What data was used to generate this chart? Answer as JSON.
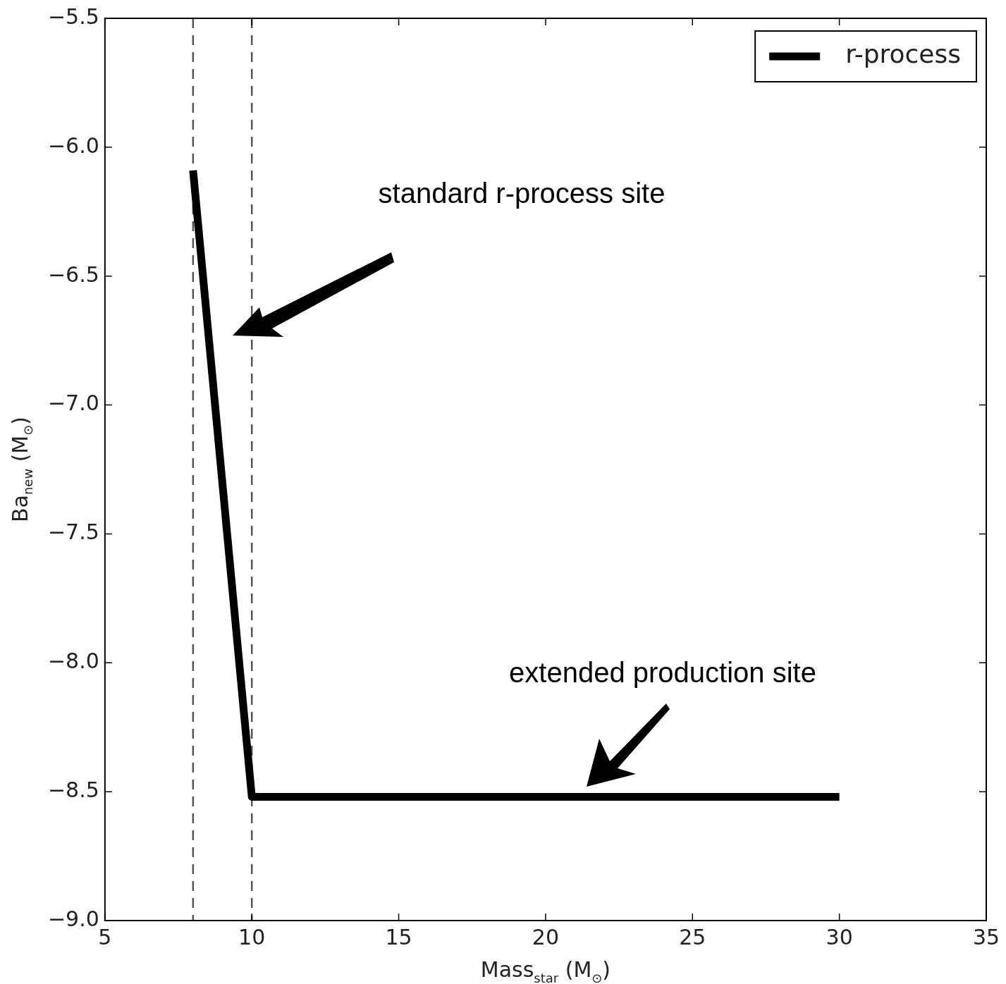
{
  "chart_data": {
    "type": "line",
    "xlabel": "Mass$_{star}$ (M$_{⊙}$)",
    "ylabel": "Ba$_{new}$ (M$_{⊙}$)",
    "xlim": [
      5,
      35
    ],
    "xticks": [
      5,
      10,
      15,
      20,
      25,
      30,
      35
    ],
    "ylim": [
      -9.0,
      -5.5
    ],
    "yticks": [
      {
        "value": -9.0,
        "label": "−9.0"
      },
      {
        "value": -8.5,
        "label": "−8.5"
      },
      {
        "value": -8.0,
        "label": "−8.0"
      },
      {
        "value": -7.5,
        "label": "−7.5"
      },
      {
        "value": -7.0,
        "label": "−7.0"
      },
      {
        "value": -6.5,
        "label": "−6.5"
      },
      {
        "value": -6.0,
        "label": "−6.0"
      },
      {
        "value": -5.5,
        "label": "−5.5"
      }
    ],
    "series": [
      {
        "name": "r-process",
        "color": "#000000",
        "x": [
          8,
          10,
          30
        ],
        "values": [
          -6.09,
          -8.52,
          -8.52
        ]
      }
    ],
    "ref_lines": [
      {
        "axis": "x",
        "value": 8,
        "color": "#555555",
        "line_style": "dashed"
      },
      {
        "axis": "x",
        "value": 10,
        "color": "#555555",
        "line_style": "dashed"
      }
    ],
    "annotations": [
      "standard r-process site",
      "extended production site"
    ],
    "legend": "top right",
    "grid": false
  }
}
